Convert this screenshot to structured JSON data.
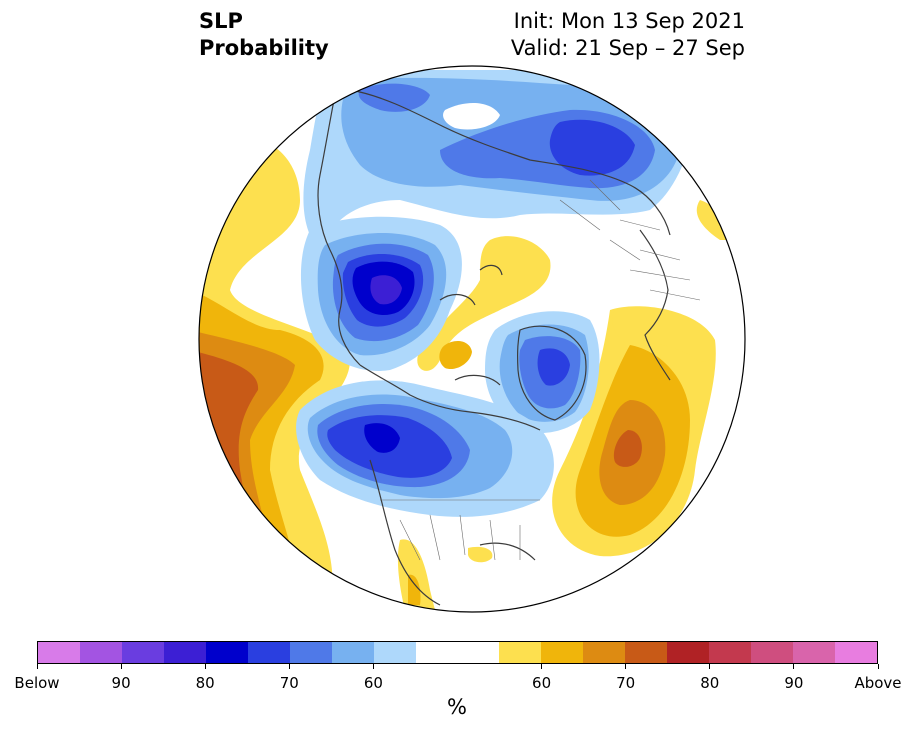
{
  "header": {
    "title_line1": "SLP",
    "title_line2": "Probability",
    "init": "Init: Mon 13 Sep 2021",
    "valid": "Valid: 21 Sep – 27 Sep"
  },
  "colorbar": {
    "unit": "%",
    "segments": [
      {
        "color": "#d87be9"
      },
      {
        "color": "#a354e2"
      },
      {
        "color": "#6a3de0"
      },
      {
        "color": "#3c1fd4"
      },
      {
        "color": "#0000cc"
      },
      {
        "color": "#2a3fe0"
      },
      {
        "color": "#4f79e8"
      },
      {
        "color": "#77b1f0"
      },
      {
        "color": "#aed8fb"
      },
      {
        "color": "#ffffff",
        "wide": true
      },
      {
        "color": "#fde04f"
      },
      {
        "color": "#f0b50b"
      },
      {
        "color": "#dd8b12"
      },
      {
        "color": "#c85a17"
      },
      {
        "color": "#b02225"
      },
      {
        "color": "#c3394e"
      },
      {
        "color": "#cf4e7f"
      },
      {
        "color": "#d964ab"
      },
      {
        "color": "#e87de0"
      }
    ],
    "labels": [
      "Below",
      "90",
      "80",
      "70",
      "60",
      "60",
      "70",
      "80",
      "90",
      "Above"
    ]
  },
  "colors": {
    "blue_40_50": "#aed8fb",
    "blue_50_60": "#77b1f0",
    "blue_60_70": "#4f79e8",
    "blue_70_80": "#2a3fe0",
    "blue_80_90": "#0000cc",
    "blue_90": "#3c1fd4",
    "yellow_40_50": "#fde04f",
    "yellow_50_60": "#f0b50b",
    "orange_60_70": "#dd8b12",
    "rust_70_80": "#c85a17"
  }
}
